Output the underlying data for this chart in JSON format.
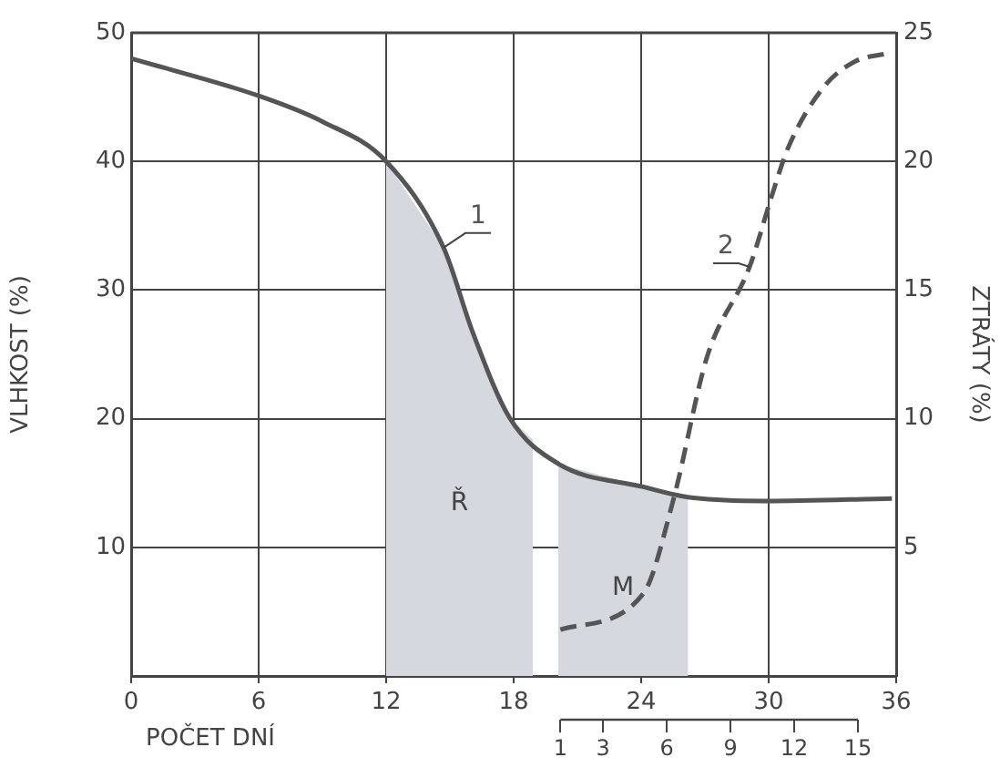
{
  "chart_data": {
    "type": "line",
    "xlabel": "POČET DNÍ",
    "ylabel": "VLHKOST (%)",
    "y2label": "ZTRÁTY (%)",
    "xlim": [
      0,
      36
    ],
    "xticks": [
      0,
      6,
      12,
      18,
      24,
      30,
      36
    ],
    "ylim": [
      0,
      50
    ],
    "yticks": [
      10,
      20,
      30,
      40,
      50
    ],
    "y2lim": [
      0,
      25
    ],
    "y2ticks": [
      5,
      10,
      15,
      20,
      25
    ],
    "x2lim": [
      -19.2,
      16.8
    ],
    "x2ticks": [
      1,
      3,
      6,
      9,
      12,
      15
    ],
    "series": [
      {
        "name": "1",
        "color": "#555555",
        "line_style": "solid",
        "x": [
          0,
          6,
          9,
          12,
          14.7,
          16.1,
          17.8,
          20.1,
          24.1,
          26.2,
          29.8,
          35.8
        ],
        "values": [
          48,
          45.1,
          43.1,
          40,
          33.3,
          26.6,
          20.1,
          16.5,
          14.7,
          13.9,
          13.6,
          13.8
        ]
      },
      {
        "name": "2",
        "color": "#555555",
        "line_style": "dashed",
        "axis": "y2",
        "x": [
          20.2,
          24.1,
          25.5,
          27.1,
          29.1,
          30.2,
          30.9,
          32.6,
          34.1,
          35.6
        ],
        "values": [
          1.8,
          3.2,
          6.8,
          12.4,
          15.9,
          18.8,
          20.5,
          22.9,
          23.9,
          24.2
        ]
      }
    ],
    "bands": [
      {
        "axis": "x",
        "from": 12,
        "to": 18.9,
        "label": "Ř",
        "color": "#d5d8de"
      },
      {
        "axis": "x",
        "from": 20.1,
        "to": 26.2,
        "label": "M",
        "color": "#d5d8de"
      }
    ],
    "grid": true,
    "legend": false,
    "marker": "none"
  }
}
